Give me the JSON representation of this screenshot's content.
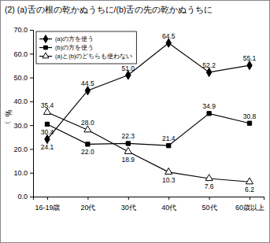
{
  "chart_data": {
    "type": "line",
    "title": "(2) (a)舌の根の乾かぬうちに/(b)舌の先の乾かぬうちに",
    "y_label": "（%）",
    "categories": [
      "16-19歳",
      "20代",
      "30代",
      "40代",
      "50代",
      "60歳以上"
    ],
    "series": [
      {
        "name": "(a)の方を使う",
        "color": "#000000",
        "marker": "diamond",
        "values": [
          24.1,
          44.5,
          51.0,
          64.5,
          52.2,
          55.1
        ],
        "value_labels": [
          "24.1",
          "44.5",
          "51.0",
          "64.5",
          "52.2",
          "55.1"
        ]
      },
      {
        "name": "(b)の方を使う",
        "color": "#000000",
        "marker": "square",
        "values": [
          30.4,
          22.0,
          22.3,
          21.4,
          34.9,
          30.8
        ],
        "value_labels": [
          "30.4",
          "22.0",
          "22.3",
          "21.4",
          "34.9",
          "30.8"
        ]
      },
      {
        "name": "(a)と(b)のどちらも使わない",
        "color": "#000000",
        "marker": "triangle-open",
        "values": [
          35.4,
          28.0,
          18.9,
          10.3,
          7.6,
          6.2
        ],
        "value_labels": [
          "35.4",
          "28.0",
          "18.9",
          "10.3",
          "7.6",
          "6.2"
        ]
      }
    ],
    "ylim": [
      0,
      70
    ],
    "yticks": [
      {
        "value": 0,
        "label": "0.0"
      },
      {
        "value": 10,
        "label": "10.0"
      },
      {
        "value": 20,
        "label": "20.0"
      },
      {
        "value": 30,
        "label": "30.0"
      },
      {
        "value": 40,
        "label": "40.0"
      },
      {
        "value": 50,
        "label": "50.0"
      },
      {
        "value": 60,
        "label": "60.0"
      },
      {
        "value": 70,
        "label": "70.0"
      }
    ],
    "grid": false,
    "legend": "upper left",
    "data_labels": true
  }
}
